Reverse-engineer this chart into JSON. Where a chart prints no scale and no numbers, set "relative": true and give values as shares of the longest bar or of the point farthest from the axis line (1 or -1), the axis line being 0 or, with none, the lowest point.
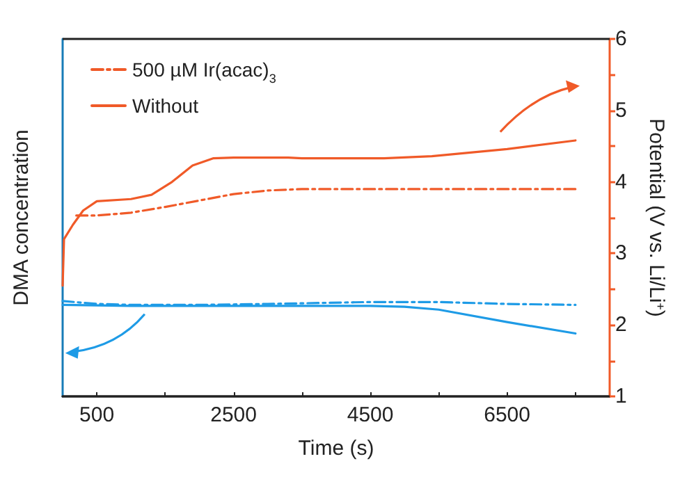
{
  "chart_data": [
    {
      "type": "line",
      "xlabel": "Time (s)",
      "y2label": "Potential (V vs. Li/Li$^{+}$)",
      "xlim": [
        0,
        8000
      ],
      "xticks": [
        500,
        {
          "value": 1500,
          "label": null
        },
        2500,
        {
          "value": 3500,
          "label": null
        },
        4500,
        {
          "value": 5500,
          "label": null
        },
        6500,
        {
          "value": 7500,
          "label": null
        }
      ],
      "y2lim": [
        1,
        6
      ],
      "y2ticks": [
        1,
        {
          "value": 1.5,
          "label": null
        },
        2,
        {
          "value": 2.5,
          "label": null
        },
        3,
        {
          "value": 3.5,
          "label": null
        },
        4,
        {
          "value": 4.5,
          "label": null
        },
        5,
        {
          "value": 5.5,
          "label": null
        },
        6
      ],
      "grid": false,
      "legend": "top left",
      "marker": "none",
      "series": [
        {
          "name": "500 µM Ir(acac)$_{3}$",
          "color": "#f05a28",
          "axis": "y2",
          "line_style": "dashdot",
          "x": [
            200,
            500,
            1000,
            1500,
            2000,
            2500,
            3000,
            3500,
            4500,
            5500,
            6500,
            7500
          ],
          "values": [
            3.53,
            3.53,
            3.57,
            3.65,
            3.74,
            3.83,
            3.88,
            3.9,
            3.9,
            3.9,
            3.9,
            3.9
          ]
        },
        {
          "name": "Without",
          "color": "#f05a28",
          "axis": "y2",
          "line_style": "solid",
          "x": [
            0,
            20,
            150,
            300,
            500,
            1000,
            1300,
            1600,
            1900,
            2200,
            2500,
            3300,
            3500,
            4700,
            5400,
            6500,
            7500
          ],
          "values": [
            2.55,
            3.2,
            3.4,
            3.6,
            3.73,
            3.76,
            3.82,
            4.0,
            4.23,
            4.33,
            4.34,
            4.34,
            4.33,
            4.33,
            4.36,
            4.46,
            4.58
          ]
        }
      ]
    },
    {
      "type": "line",
      "ylabel": "DMA concentration",
      "xlim": [
        0,
        8000
      ],
      "relative": true,
      "grid": false,
      "marker": "none",
      "series": [
        {
          "color": "#1e9be6",
          "axis": "y",
          "line_style": "dashdot",
          "x": [
            0,
            500,
            1000,
            2000,
            3000,
            4500,
            5500,
            6500,
            7500
          ],
          "values": [
            1.0,
            0.97,
            0.96,
            0.96,
            0.97,
            0.99,
            0.99,
            0.97,
            0.96
          ]
        },
        {
          "color": "#1e9be6",
          "axis": "y",
          "line_style": "solid",
          "x": [
            0,
            1000,
            3000,
            4500,
            5000,
            5500,
            6500,
            7500
          ],
          "values": [
            0.96,
            0.95,
            0.95,
            0.95,
            0.94,
            0.91,
            0.78,
            0.66
          ]
        }
      ]
    }
  ]
}
